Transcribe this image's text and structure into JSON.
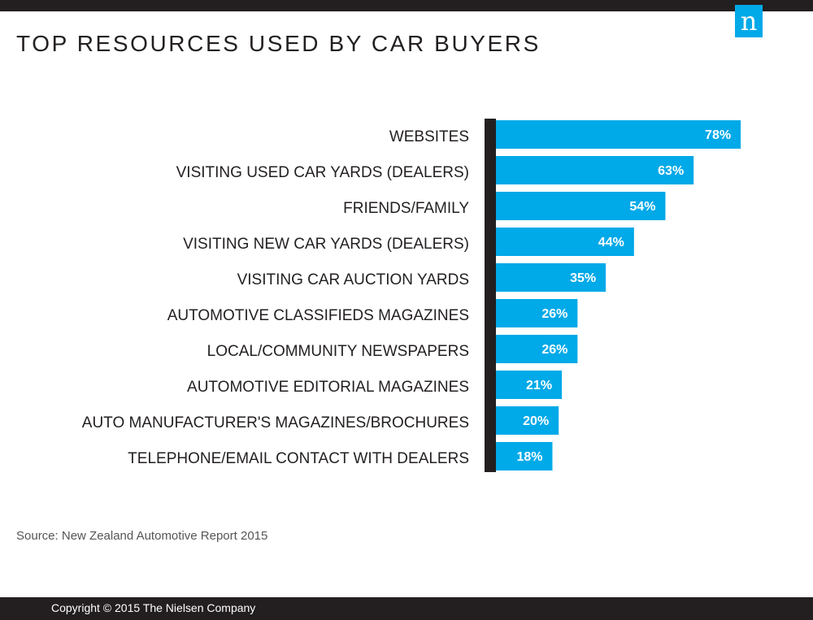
{
  "colors": {
    "bar": "#00a9e8",
    "axis": "#231f20",
    "label_text": "#231f20",
    "value_text": "#ffffff"
  },
  "logo": {
    "letter": "n"
  },
  "header": {
    "title": "TOP RESOURCES USED BY CAR BUYERS"
  },
  "footer": {
    "source": "Source: New Zealand Automotive Report 2015",
    "copyright": "Copyright © 2015 The Nielsen Company"
  },
  "chart_data": {
    "type": "bar",
    "orientation": "horizontal",
    "categories": [
      "WEBSITES",
      "VISITING USED CAR YARDS (DEALERS)",
      "FRIENDS/FAMILY",
      "VISITING NEW CAR YARDS (DEALERS)",
      "VISITING CAR AUCTION YARDS",
      "AUTOMOTIVE CLASSIFIEDS MAGAZINES",
      "LOCAL/COMMUNITY NEWSPAPERS",
      "AUTOMOTIVE EDITORIAL MAGAZINES",
      "AUTO MANUFACTURER'S MAGAZINES/BROCHURES",
      "TELEPHONE/EMAIL CONTACT WITH DEALERS"
    ],
    "values": [
      78,
      63,
      54,
      44,
      35,
      26,
      26,
      21,
      20,
      18
    ],
    "value_labels": [
      "78%",
      "63%",
      "54%",
      "44%",
      "35%",
      "26%",
      "26%",
      "21%",
      "20%",
      "18%"
    ],
    "title": "TOP RESOURCES USED BY CAR BUYERS",
    "xlabel": "",
    "ylabel": "",
    "xlim": [
      0,
      100
    ],
    "grid": false,
    "legend": "none"
  }
}
